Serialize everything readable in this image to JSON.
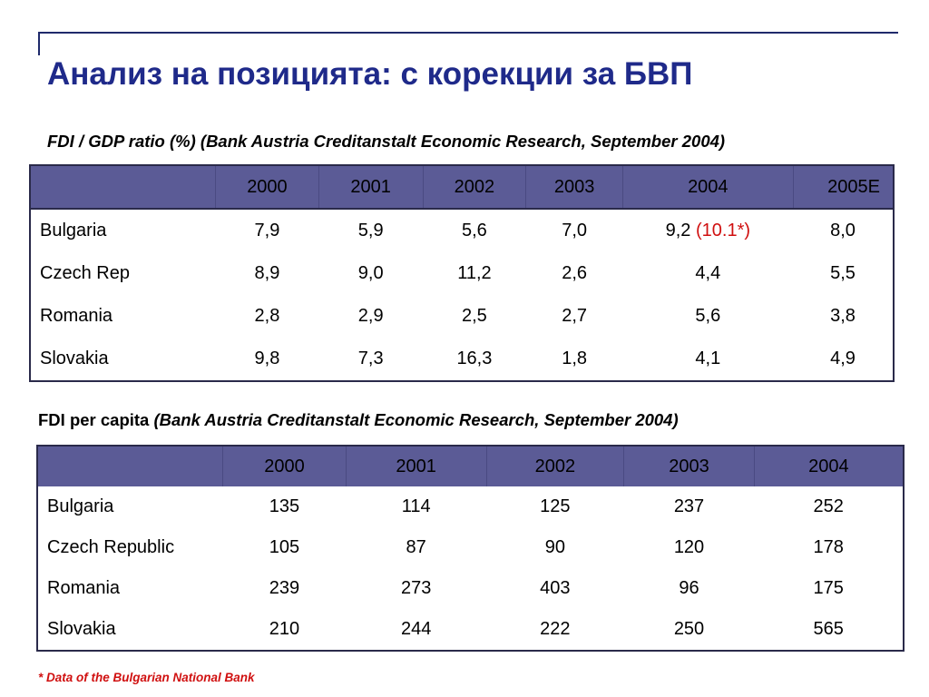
{
  "slide": {
    "title": "Анализ на позицията: с корекции за БВП",
    "table1_caption": "FDI / GDP ratio (%) (Bank Austria Creditanstalt Economic Research, September 2004)",
    "table2_caption_bold": "FDI per capita ",
    "table2_caption_italic": "(Bank Austria Creditanstalt Economic Research, September 2004)",
    "footnote": "* Data of the Bulgarian National Bank"
  },
  "table1": {
    "headers": [
      "",
      "2000",
      "2001",
      "2002",
      "2003",
      "2004",
      "2005E"
    ],
    "rows": [
      {
        "label": "Bulgaria",
        "values": [
          "7,9",
          "5,9",
          "5,6",
          "7,0",
          "9,2",
          "8,0"
        ],
        "note": "(10.1*)"
      },
      {
        "label": "Czech Rep",
        "values": [
          "8,9",
          "9,0",
          "11,2",
          "2,6",
          "4,4",
          "5,5"
        ]
      },
      {
        "label": "Romania",
        "values": [
          "2,8",
          "2,9",
          "2,5",
          "2,7",
          "5,6",
          "3,8"
        ]
      },
      {
        "label": "Slovakia",
        "values": [
          "9,8",
          "7,3",
          "16,3",
          "1,8",
          "4,1",
          "4,9"
        ]
      }
    ]
  },
  "table2": {
    "headers": [
      "",
      "2000",
      "2001",
      "2002",
      "2003",
      "2004"
    ],
    "rows": [
      {
        "label": "Bulgaria",
        "values": [
          "135",
          "114",
          "125",
          "237",
          "252"
        ]
      },
      {
        "label": "Czech Republic",
        "values": [
          "105",
          "87",
          "90",
          "120",
          "178"
        ]
      },
      {
        "label": "Romania",
        "values": [
          "239",
          "273",
          "403",
          "96",
          "175"
        ]
      },
      {
        "label": "Slovakia",
        "values": [
          "210",
          "244",
          "222",
          "250",
          "565"
        ]
      }
    ]
  },
  "colors": {
    "title": "#1f2a8a",
    "header_bg": "#5b5b96",
    "note": "#d01010"
  }
}
